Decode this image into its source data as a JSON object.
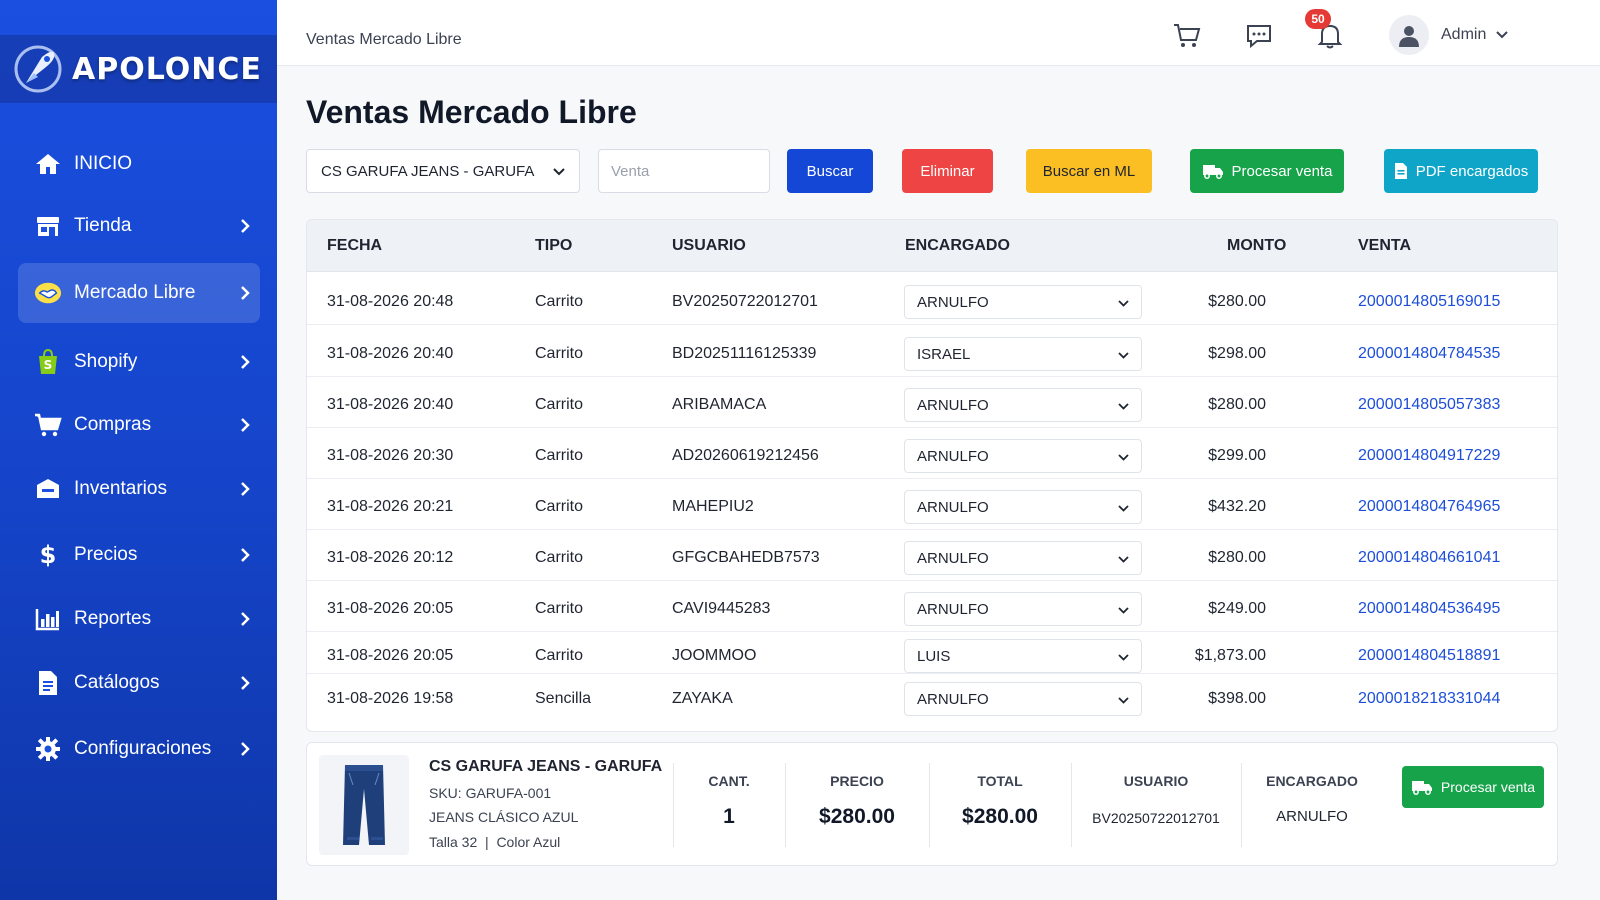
{
  "brand": {
    "name": "APOLONCE"
  },
  "sidebar": {
    "items": [
      {
        "label": "INICIO",
        "icon": "home-icon",
        "has_chevron": false
      },
      {
        "label": "Tienda",
        "icon": "store-icon",
        "has_chevron": true
      },
      {
        "label": "Mercado Libre",
        "icon": "handshake-icon",
        "has_chevron": true,
        "active": true
      },
      {
        "label": "Shopify",
        "icon": "shopify-bag-icon",
        "has_chevron": true
      },
      {
        "label": "Compras",
        "icon": "cart-icon",
        "has_chevron": true
      },
      {
        "label": "Inventarios",
        "icon": "box-icon",
        "has_chevron": true
      },
      {
        "label": "Precios",
        "icon": "dollar-icon",
        "has_chevron": true
      },
      {
        "label": "Reportes",
        "icon": "bar-chart-icon",
        "has_chevron": true
      },
      {
        "label": "Catálogos",
        "icon": "document-icon",
        "has_chevron": true
      },
      {
        "label": "Configuraciones",
        "icon": "gear-icon",
        "has_chevron": true
      }
    ]
  },
  "header": {
    "breadcrumb": "Ventas Mercado Libre",
    "notifications_count": "50",
    "user_name": "Admin"
  },
  "main": {
    "title": "Ventas Mercado Libre",
    "store_select": "CS GARUFA JEANS - GARUFA",
    "venta_placeholder": "Venta",
    "buttons": {
      "buscar": "Buscar",
      "eliminar": "Eliminar",
      "buscar_ml": "Buscar en ML",
      "procesar": "Procesar venta",
      "pdf": "PDF encargados"
    }
  },
  "colors": {
    "sidebar": "#1a4fe0",
    "buscar": "#1447d6",
    "eliminar": "#ef4444",
    "buscar_ml": "#fbbf24",
    "procesar": "#16a34a",
    "pdf": "#0ea5c9",
    "link": "#1d4ed8",
    "badge": "#e53935"
  },
  "table": {
    "headers": [
      "FECHA",
      "TIPO",
      "USUARIO",
      "ENCARGADO",
      "MONTO",
      "VENTA"
    ],
    "rows": [
      {
        "fecha": "31-08-2026 20:48",
        "tipo": "Carrito",
        "usuario": "BV20250722012701",
        "encargado": "ARNULFO",
        "monto": "$280.00",
        "venta": "2000014805169015"
      },
      {
        "fecha": "31-08-2026 20:40",
        "tipo": "Carrito",
        "usuario": "BD20251116125339",
        "encargado": "ISRAEL",
        "monto": "$298.00",
        "venta": "2000014804784535"
      },
      {
        "fecha": "31-08-2026 20:40",
        "tipo": "Carrito",
        "usuario": "ARIBAMACA",
        "encargado": "ARNULFO",
        "monto": "$280.00",
        "venta": "2000014805057383"
      },
      {
        "fecha": "31-08-2026 20:30",
        "tipo": "Carrito",
        "usuario": "AD20260619212456",
        "encargado": "ARNULFO",
        "monto": "$299.00",
        "venta": "2000014804917229"
      },
      {
        "fecha": "31-08-2026 20:21",
        "tipo": "Carrito",
        "usuario": "MAHEPIU2",
        "encargado": "ARNULFO",
        "monto": "$432.20",
        "venta": "2000014804764965"
      },
      {
        "fecha": "31-08-2026 20:12",
        "tipo": "Carrito",
        "usuario": "GFGCBAHEDB7573",
        "encargado": "ARNULFO",
        "monto": "$280.00",
        "venta": "2000014804661041"
      },
      {
        "fecha": "31-08-2026 20:05",
        "tipo": "Carrito",
        "usuario": "CAVI9445283",
        "encargado": "ARNULFO",
        "monto": "$249.00",
        "venta": "2000014804536495"
      },
      {
        "fecha": "31-08-2026 20:05",
        "tipo": "Carrito",
        "usuario": "JOOMMOO",
        "encargado": "LUIS",
        "monto": "$1,873.00",
        "venta": "2000014804518891"
      },
      {
        "fecha": "31-08-2026 19:58",
        "tipo": "Sencilla",
        "usuario": "ZAYAKA",
        "encargado": "ARNULFO",
        "monto": "$398.00",
        "venta": "2000018218331044"
      }
    ]
  },
  "detail": {
    "product_name": "CS GARUFA JEANS - GARUFA",
    "sku": "SKU: GARUFA-001",
    "description": "JEANS CLÁSICO AZUL",
    "variant": "Talla 32  |  Color Azul",
    "cant_label": "CANT.",
    "cant": "1",
    "precio_label": "PRECIO",
    "precio": "$280.00",
    "total_label": "TOTAL",
    "total": "$280.00",
    "usuario_label": "USUARIO",
    "usuario": "BV20250722012701",
    "encargado_label": "ENCARGADO",
    "encargado": "ARNULFO",
    "procesar": "Procesar venta"
  }
}
